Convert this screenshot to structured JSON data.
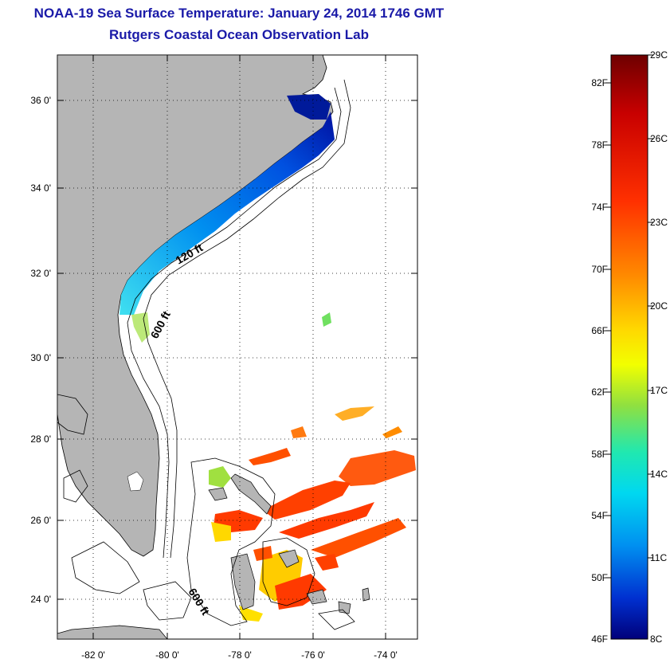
{
  "header": {
    "title": "NOAA-19 Sea Surface Temperature:  January 24, 2014 1746 GMT",
    "subtitle": "Rutgers Coastal Ocean Observation Lab"
  },
  "map": {
    "lat_labels": [
      "36 0'",
      "34 0'",
      "32 0'",
      "30 0'",
      "28 0'",
      "26 0'",
      "24 0'"
    ],
    "lon_labels": [
      "-82 0'",
      "-80 0'",
      "-78 0'",
      "-76 0'",
      "-74 0'"
    ],
    "contour_labels": {
      "shelf_120": "120 ft",
      "shelf_600_north": "600 ft",
      "shelf_600_south": "600 ft"
    },
    "land_color": "#b5b5b5"
  },
  "colorbar": {
    "fahrenheit_labels": [
      "82F",
      "78F",
      "74F",
      "70F",
      "66F",
      "62F",
      "58F",
      "54F",
      "50F",
      "46F"
    ],
    "celsius_labels": [
      "29C",
      "26C",
      "23C",
      "20C",
      "17C",
      "14C",
      "11C",
      "8C"
    ],
    "colors": [
      "#7a0000",
      "#d40000",
      "#ff3a00",
      "#ff8a00",
      "#ffd000",
      "#f0ff00",
      "#90e040",
      "#30e8a0",
      "#00e8f0",
      "#00a0f0",
      "#0040e0",
      "#000090"
    ]
  }
}
